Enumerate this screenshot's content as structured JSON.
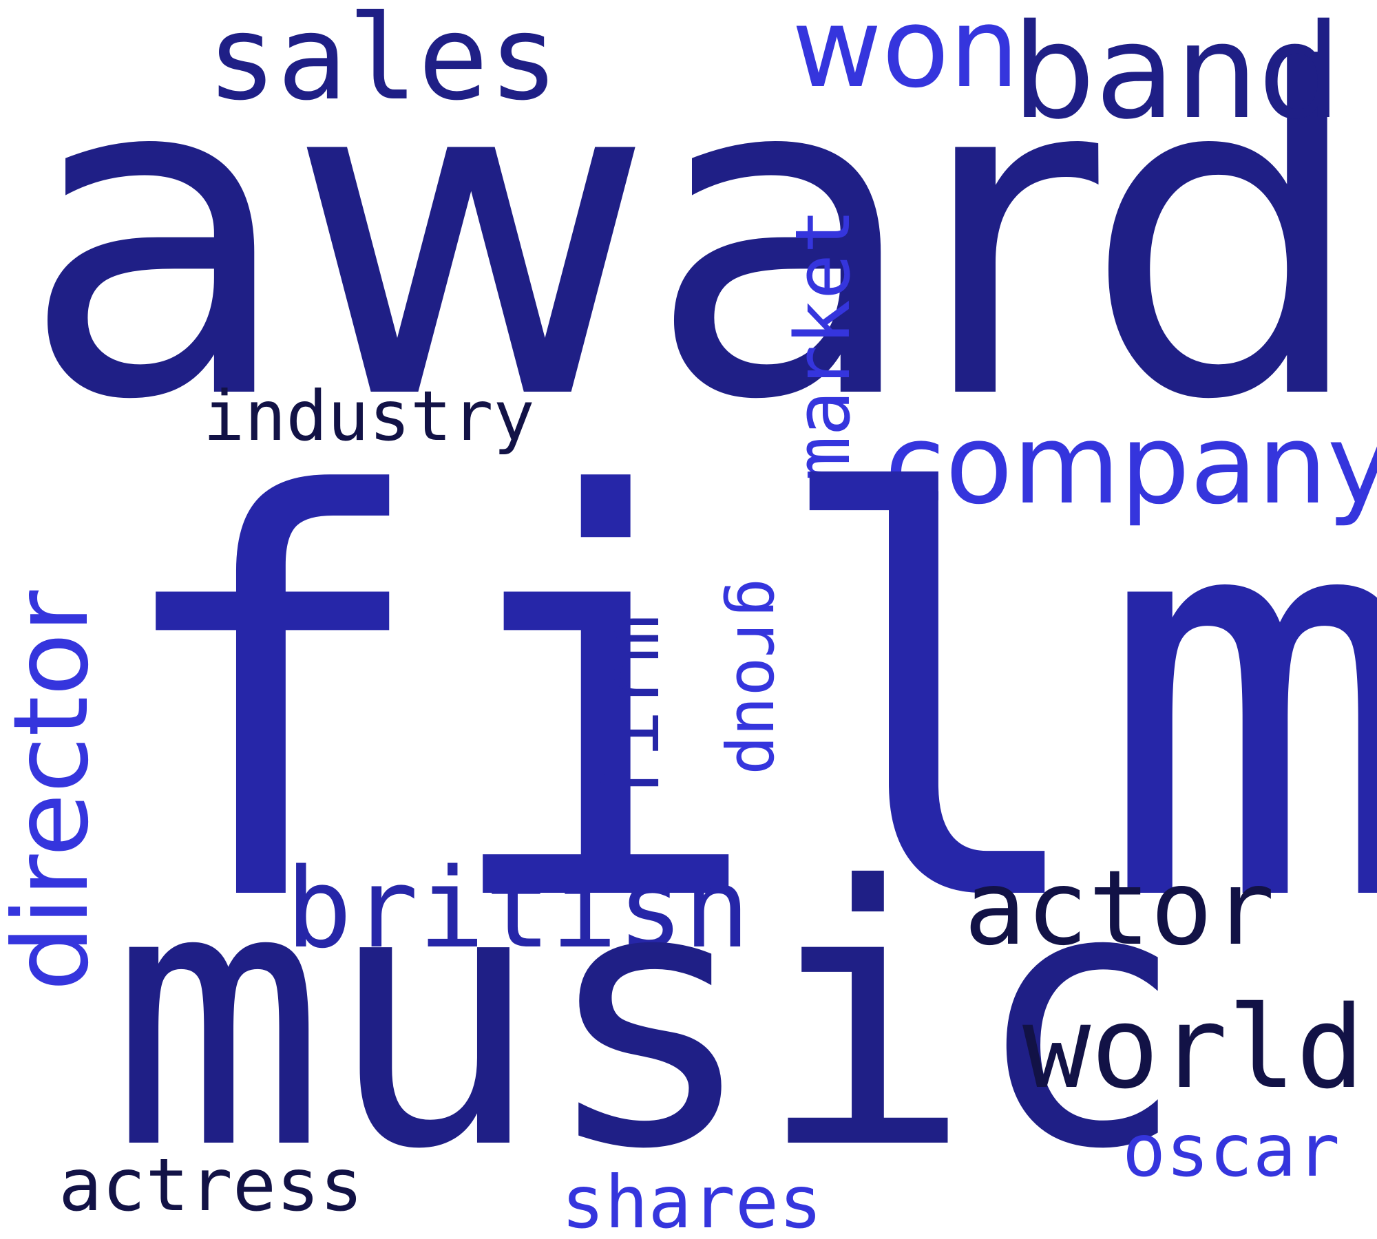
{
  "colors": {
    "background": "#ffffff",
    "navy": "#1f1f86",
    "indigo": "#2626a8",
    "blue": "#3535dd",
    "dark": "#121246"
  },
  "words": {
    "award": "award",
    "film": "film",
    "music": "music",
    "sales": "sales",
    "won": "won",
    "band": "band",
    "market": "market",
    "industry": "industry",
    "company": "company",
    "director": "director",
    "firm": "firm",
    "group": "group",
    "british": "british",
    "actor": "actor",
    "world": "world",
    "oscar": "oscar",
    "actress": "actress",
    "shares": "shares"
  }
}
